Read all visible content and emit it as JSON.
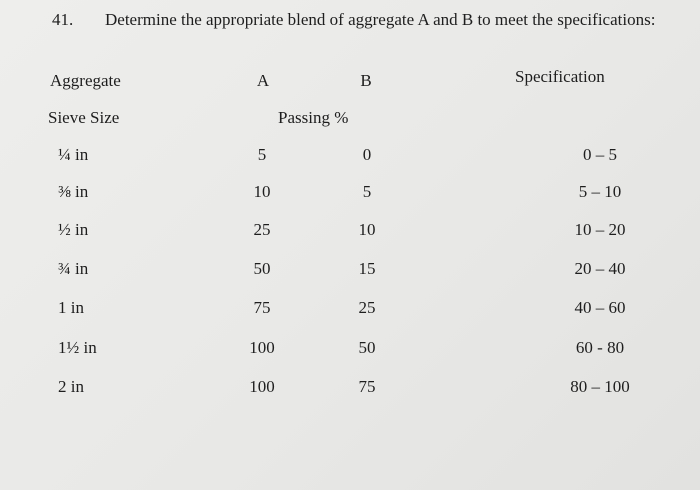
{
  "question": {
    "number": "41.",
    "text": "Determine the appropriate blend of aggregate A and B to meet the specifications:"
  },
  "table": {
    "header": {
      "aggregate": "Aggregate",
      "a": "A",
      "b": "B",
      "specification": "Specification",
      "sieve_size": "Sieve Size",
      "passing": "Passing %"
    },
    "rows": [
      [
        "¼ in",
        5,
        0,
        "0 – 5"
      ],
      [
        "⅜ in",
        10,
        5,
        "5 – 10"
      ],
      [
        "½ in",
        25,
        10,
        "10 – 20"
      ],
      [
        "¾ in",
        50,
        15,
        "20 – 40"
      ],
      [
        "1 in",
        75,
        25,
        "40 – 60"
      ],
      [
        "1½ in",
        100,
        50,
        "60 - 80"
      ],
      [
        "2 in",
        100,
        75,
        "80 – 100"
      ]
    ]
  }
}
